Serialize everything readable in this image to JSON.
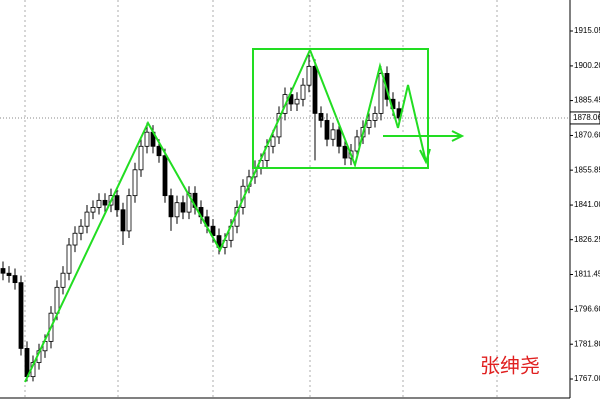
{
  "chart_data": {
    "type": "candlestick",
    "ylim": [
      1758.06,
      1928.24
    ],
    "yticks": [
      1915.05,
      {
        "value": 1900.2,
        "label": "1900.20"
      },
      1885.45,
      {
        "value": 1870.6,
        "label": "1870.60"
      },
      1855.85,
      {
        "value": 1841.0,
        "label": "1841.00"
      },
      1826.25,
      1811.45,
      {
        "value": 1796.6,
        "label": "1796.60"
      },
      {
        "value": 1781.8,
        "label": "1781.80"
      },
      {
        "value": 1767.0,
        "label": "1767.00"
      }
    ],
    "last_price": 1878.06,
    "up_color": "#ffffff",
    "down_color": "#000000",
    "open": [
      1814,
      1812,
      1811,
      1808,
      1780,
      1768,
      1774,
      1779,
      1783,
      1795,
      1806,
      1812,
      1824,
      1829,
      1832,
      1838,
      1840,
      1843,
      1841,
      1845,
      1839,
      1830,
      1845,
      1856,
      1866,
      1872,
      1866,
      1862,
      1845,
      1836,
      1842,
      1838,
      1846,
      1840,
      1836,
      1832,
      1828,
      1823,
      1826,
      1832,
      1840,
      1849,
      1853,
      1857,
      1860,
      1866,
      1870,
      1880,
      1888,
      1884,
      1886,
      1892,
      1900,
      1880,
      1877,
      1869,
      1873,
      1866,
      1861,
      1864,
      1870,
      1874,
      1877,
      1880,
      1897,
      1886,
      1882
    ],
    "high": [
      1817,
      1815,
      1814,
      1811,
      1783,
      1777,
      1782,
      1786,
      1798,
      1809,
      1815,
      1827,
      1832,
      1835,
      1841,
      1843,
      1846,
      1846,
      1848,
      1848,
      1842,
      1848,
      1859,
      1869,
      1876,
      1875,
      1869,
      1865,
      1848,
      1845,
      1845,
      1849,
      1849,
      1843,
      1839,
      1835,
      1831,
      1829,
      1835,
      1843,
      1852,
      1856,
      1860,
      1863,
      1869,
      1873,
      1883,
      1891,
      1891,
      1889,
      1895,
      1905,
      1903,
      1883,
      1880,
      1876,
      1876,
      1869,
      1867,
      1873,
      1877,
      1880,
      1883,
      1900,
      1900,
      1889,
      1885
    ],
    "low": [
      1809,
      1808,
      1805,
      1777,
      1766,
      1766,
      1771,
      1776,
      1780,
      1792,
      1803,
      1809,
      1821,
      1826,
      1829,
      1835,
      1837,
      1838,
      1838,
      1836,
      1824,
      1827,
      1842,
      1853,
      1863,
      1863,
      1859,
      1842,
      1830,
      1833,
      1835,
      1835,
      1837,
      1833,
      1829,
      1825,
      1820,
      1820,
      1823,
      1829,
      1837,
      1846,
      1850,
      1854,
      1857,
      1863,
      1867,
      1877,
      1881,
      1881,
      1883,
      1889,
      1860,
      1874,
      1866,
      1866,
      1863,
      1858,
      1858,
      1861,
      1867,
      1871,
      1874,
      1877,
      1883,
      1879,
      1875
    ],
    "close": [
      1812,
      1811,
      1808,
      1780,
      1768,
      1774,
      1779,
      1783,
      1795,
      1806,
      1812,
      1824,
      1829,
      1832,
      1838,
      1840,
      1843,
      1841,
      1845,
      1839,
      1830,
      1845,
      1856,
      1866,
      1872,
      1866,
      1862,
      1845,
      1836,
      1842,
      1838,
      1846,
      1840,
      1836,
      1832,
      1828,
      1823,
      1826,
      1832,
      1840,
      1849,
      1853,
      1857,
      1860,
      1866,
      1870,
      1880,
      1888,
      1884,
      1886,
      1892,
      1900,
      1880,
      1877,
      1869,
      1873,
      1866,
      1861,
      1864,
      1870,
      1874,
      1877,
      1880,
      1897,
      1886,
      1882,
      1878.06
    ],
    "watermark": "张绅尧"
  }
}
